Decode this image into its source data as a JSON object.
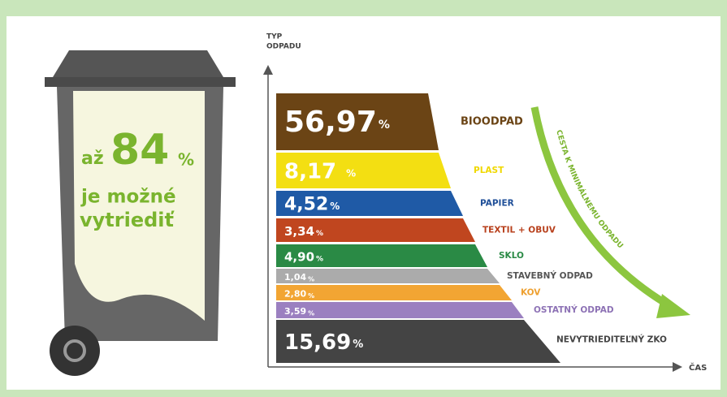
{
  "bin": {
    "line1_prefix": "až",
    "line1_number": "84",
    "line1_unit": "%",
    "line2": "je možné",
    "line3": "vytriediť"
  },
  "axes": {
    "y_label_1": "TYP",
    "y_label_2": "ODPADU",
    "x_label": "ČAS"
  },
  "arrow_label": "CESTA K MINIMÁLNEMU ODPADU",
  "layers": [
    {
      "value": "56,97",
      "unit": "%",
      "label": "BIOODPAD",
      "color": "#6b4415",
      "label_color": "#6b4415"
    },
    {
      "value": "8,17",
      "unit": "%",
      "label": "PLAST",
      "color": "#f3df12",
      "label_color": "#f0d800"
    },
    {
      "value": "4,52",
      "unit": "%",
      "label": "PAPIER",
      "color": "#1f5aa6",
      "label_color": "#1f4f98"
    },
    {
      "value": "3,34",
      "unit": "%",
      "label": "TEXTIL + OBUV",
      "color": "#c0461f",
      "label_color": "#b8401c"
    },
    {
      "value": "4,90",
      "unit": "%",
      "label": "SKLO",
      "color": "#2a8a45",
      "label_color": "#2a8a45"
    },
    {
      "value": "1,04",
      "unit": "%",
      "label": "STAVEBNÝ ODPAD",
      "color": "#ababab",
      "label_color": "#555555"
    },
    {
      "value": "2,80",
      "unit": "%",
      "label": "KOV",
      "color": "#f2a533",
      "label_color": "#eea030"
    },
    {
      "value": "3,59",
      "unit": "%",
      "label": "OSTATNÝ ODPAD",
      "color": "#9b80c0",
      "label_color": "#8d72b5"
    },
    {
      "value": "15,69",
      "unit": "%",
      "label": "NEVYTRIEDITEĽNÝ ZKO",
      "color": "#444444",
      "label_color": "#444444"
    }
  ]
}
